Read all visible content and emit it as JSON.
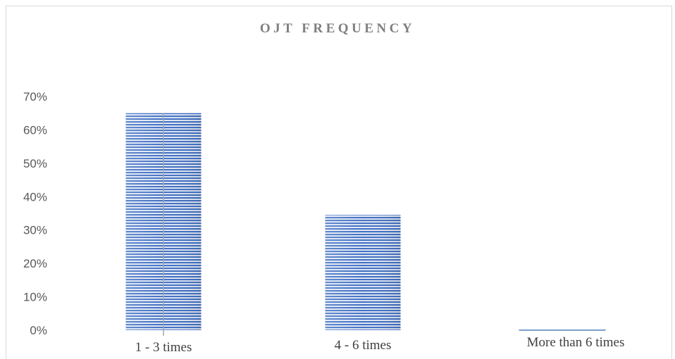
{
  "chart_data": {
    "type": "bar",
    "title": "OJT FREQUENCY",
    "xlabel": "",
    "ylabel": "",
    "categories": [
      "1 - 3 times",
      "4 - 6 times",
      "More than 6 times"
    ],
    "values": [
      65,
      34.5,
      0
    ],
    "ylim": [
      0,
      70
    ],
    "yticks": [
      "0%",
      "10%",
      "20%",
      "30%",
      "40%",
      "50%",
      "60%",
      "70%"
    ],
    "grid": false,
    "legend": "none",
    "colors": {
      "bar_stripe_light": "#ffffff",
      "bar_stripe_dark": "#4472c4",
      "tick_text": "#595959",
      "title": "#7f7f7f"
    }
  }
}
